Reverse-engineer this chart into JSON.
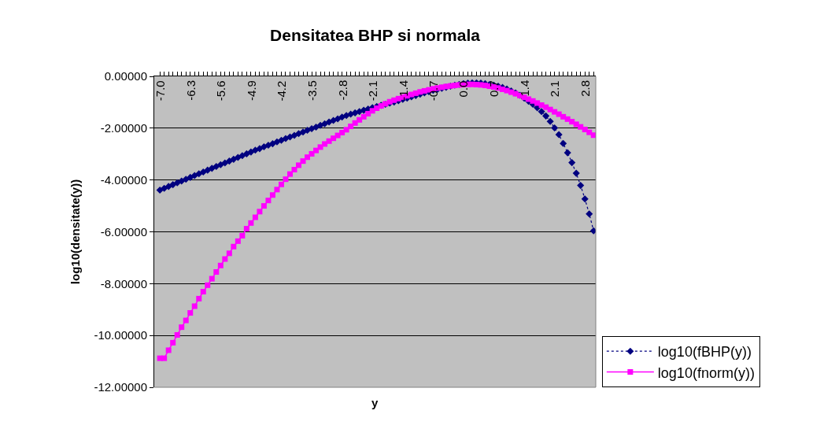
{
  "chart_data": {
    "type": "line",
    "title": "Densitatea BHP si normala",
    "xlabel": "y",
    "ylabel": "log10(densitate(y))",
    "categories": [
      "-7.0",
      null,
      null,
      null,
      null,
      null,
      null,
      "-6.3",
      null,
      null,
      null,
      null,
      null,
      null,
      "-5.6",
      null,
      null,
      null,
      null,
      null,
      null,
      "-4.9",
      null,
      null,
      null,
      null,
      null,
      null,
      "-4.2",
      null,
      null,
      null,
      null,
      null,
      null,
      "-3.5",
      null,
      null,
      null,
      null,
      null,
      null,
      "-2.8",
      null,
      null,
      null,
      null,
      null,
      null,
      "-2.1",
      null,
      null,
      null,
      null,
      null,
      null,
      "-1.4",
      null,
      null,
      null,
      null,
      null,
      null,
      "-0.7",
      null,
      null,
      null,
      null,
      null,
      null,
      "0.0",
      null,
      null,
      null,
      null,
      null,
      null,
      "0.7",
      null,
      null,
      null,
      null,
      null,
      null,
      "1.4",
      null,
      null,
      null,
      null,
      null,
      null,
      "2.1",
      null,
      null,
      null,
      null,
      null,
      null,
      "2.8",
      null,
      null
    ],
    "series": [
      {
        "name": "log10(fBHP(y))",
        "color": "#000080",
        "marker": "diamond",
        "line_style": "dotted",
        "values": [
          -4.39,
          -4.32,
          -4.25,
          -4.18,
          -4.11,
          -4.04,
          -3.97,
          -3.9,
          -3.83,
          -3.76,
          -3.69,
          -3.62,
          -3.55,
          -3.48,
          -3.41,
          -3.34,
          -3.27,
          -3.2,
          -3.13,
          -3.06,
          -2.99,
          -2.92,
          -2.85,
          -2.79,
          -2.72,
          -2.66,
          -2.6,
          -2.53,
          -2.47,
          -2.4,
          -2.34,
          -2.28,
          -2.21,
          -2.15,
          -2.08,
          -2.02,
          -1.96,
          -1.89,
          -1.83,
          -1.76,
          -1.7,
          -1.64,
          -1.57,
          -1.51,
          -1.46,
          -1.41,
          -1.36,
          -1.31,
          -1.26,
          -1.21,
          -1.16,
          -1.12,
          -1.08,
          -1.03,
          -0.99,
          -0.94,
          -0.89,
          -0.84,
          -0.79,
          -0.74,
          -0.69,
          -0.64,
          -0.59,
          -0.54,
          -0.5,
          -0.46,
          -0.42,
          -0.38,
          -0.34,
          -0.31,
          -0.28,
          -0.26,
          -0.25,
          -0.25,
          -0.26,
          -0.28,
          -0.31,
          -0.34,
          -0.38,
          -0.43,
          -0.49,
          -0.56,
          -0.64,
          -0.73,
          -0.84,
          -0.96,
          -1.08,
          -1.21,
          -1.36,
          -1.53,
          -1.74,
          -1.99,
          -2.25,
          -2.59,
          -2.95,
          -3.33,
          -3.74,
          -4.21,
          -4.73,
          -5.31,
          -5.96
        ]
      },
      {
        "name": "log10(fnorm(y))",
        "color": "#ff00ff",
        "marker": "square",
        "line_style": "solid",
        "values": [
          -10.88,
          -10.88,
          -10.57,
          -10.28,
          -9.98,
          -9.68,
          -9.42,
          -9.13,
          -8.87,
          -8.58,
          -8.31,
          -8.06,
          -7.81,
          -7.55,
          -7.3,
          -7.05,
          -6.83,
          -6.57,
          -6.36,
          -6.15,
          -5.88,
          -5.66,
          -5.44,
          -5.22,
          -5.0,
          -4.79,
          -4.58,
          -4.37,
          -4.17,
          -3.97,
          -3.77,
          -3.6,
          -3.43,
          -3.27,
          -3.12,
          -2.99,
          -2.86,
          -2.73,
          -2.61,
          -2.5,
          -2.39,
          -2.28,
          -2.17,
          -2.06,
          -1.93,
          -1.8,
          -1.68,
          -1.56,
          -1.44,
          -1.33,
          -1.23,
          -1.14,
          -1.06,
          -0.98,
          -0.92,
          -0.86,
          -0.8,
          -0.75,
          -0.7,
          -0.65,
          -0.6,
          -0.56,
          -0.52,
          -0.48,
          -0.45,
          -0.42,
          -0.39,
          -0.37,
          -0.35,
          -0.33,
          -0.32,
          -0.31,
          -0.31,
          -0.32,
          -0.33,
          -0.35,
          -0.38,
          -0.41,
          -0.45,
          -0.5,
          -0.55,
          -0.61,
          -0.67,
          -0.74,
          -0.81,
          -0.88,
          -0.95,
          -1.03,
          -1.11,
          -1.19,
          -1.28,
          -1.37,
          -1.46,
          -1.56,
          -1.65,
          -1.75,
          -1.85,
          -1.95,
          -2.05,
          -2.16,
          -2.27
        ]
      }
    ],
    "ylim": [
      -12,
      0
    ],
    "yticks": [
      {
        "value": -12,
        "label": "-12.00000"
      },
      {
        "value": -10,
        "label": "-10.00000"
      },
      {
        "value": -8,
        "label": "-8.00000"
      },
      {
        "value": -6,
        "label": "-6.00000"
      },
      {
        "value": -4,
        "label": "-4.00000"
      },
      {
        "value": -2,
        "label": "-2.00000"
      },
      {
        "value": 0,
        "label": "0.00000"
      }
    ],
    "grid": "y",
    "legend": "right"
  }
}
